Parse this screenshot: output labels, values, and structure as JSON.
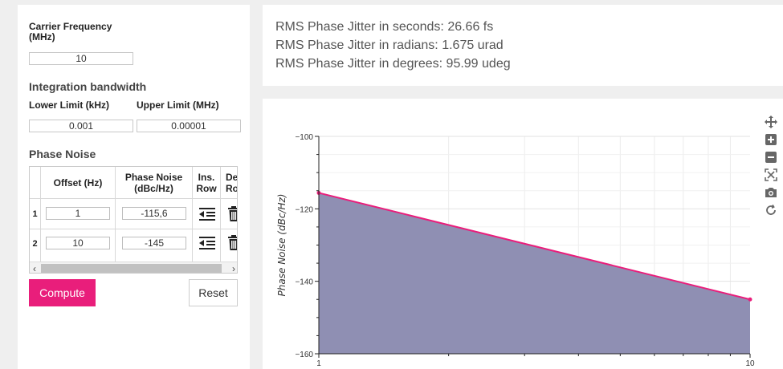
{
  "left": {
    "carrier_label_line1": "Carrier Frequency",
    "carrier_label_line2": "(MHz)",
    "carrier_value": "10",
    "integration_heading": "Integration bandwidth",
    "lower_label": "Lower Limit (kHz)",
    "upper_label": "Upper Limit (MHz)",
    "lower_value": "0.001",
    "upper_value": "0.00001",
    "phase_noise_heading": "Phase Noise",
    "table": {
      "col_offset": "Offset (Hz)",
      "col_pn_line1": "Phase Noise",
      "col_pn_line2": "(dBc/Hz)",
      "col_ins_line1": "Ins.",
      "col_ins_line2": "Row",
      "col_del_line1": "De",
      "col_del_line2": "Ro",
      "rows": [
        {
          "num": "1",
          "offset": "1",
          "pn": "-115,6"
        },
        {
          "num": "2",
          "offset": "10",
          "pn": "-145"
        }
      ]
    },
    "compute_label": "Compute",
    "reset_label": "Reset",
    "accent_color": "#e91e7b"
  },
  "results": {
    "line1": "RMS Phase Jitter in seconds: 26.66 fs",
    "line2": "RMS Phase Jitter in radians: 1.675 urad",
    "line3": "RMS Phase Jitter in degrees: 95.99 udeg"
  },
  "toolbar": {
    "icons": [
      "pan-icon",
      "zoom-in-icon",
      "zoom-out-icon",
      "reset-axes-icon",
      "camera-icon",
      "refresh-icon"
    ]
  },
  "chart_data": {
    "type": "area",
    "x": [
      1,
      10
    ],
    "y": [
      -115.6,
      -145
    ],
    "ylabel": "Phase Noise (dBc/Hz)",
    "xlabel": "",
    "xscale": "log",
    "xlim": [
      1,
      10
    ],
    "ylim": [
      -160,
      -100
    ],
    "yticks": [
      -100,
      -120,
      -140,
      -160
    ],
    "ytick_labels": [
      "−100",
      "−120",
      "−140",
      "−160"
    ],
    "xtick_labels": [
      "1",
      "10"
    ],
    "line_color": "#e91e7b",
    "fill_color": "#8f8fb3",
    "grid": true
  }
}
